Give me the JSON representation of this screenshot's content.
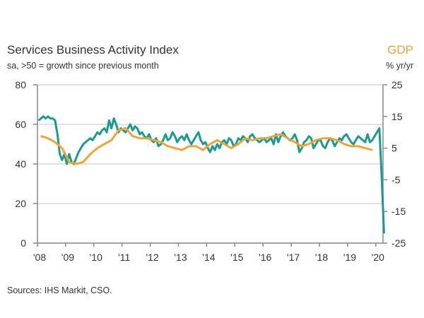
{
  "chart_data": {
    "type": "line",
    "title": "Services Business Activity Index",
    "subtitle": "sa, >50 = growth since previous month",
    "right_axis_title": "GDP",
    "right_axis_unit": "% yr/yr",
    "source": "Sources: IHS Markit, CSO.",
    "x_tick_labels": [
      "'08",
      "'09",
      "'10",
      "'11",
      "'12",
      "'13",
      "'14",
      "'15",
      "'16",
      "'17",
      "'18",
      "'19",
      "'20"
    ],
    "left_axis": {
      "ylim": [
        0,
        80
      ],
      "ticks": [
        0,
        20,
        40,
        60,
        80
      ]
    },
    "right_axis": {
      "ylim": [
        -25,
        25
      ],
      "ticks": [
        -25,
        -15,
        -5,
        5,
        15,
        25
      ]
    },
    "grid": true,
    "colors": {
      "pmi": "#1b9a95",
      "gdp": "#f2a33a"
    },
    "series": [
      {
        "axis": "left",
        "frequency": "monthly",
        "start": "2008-01",
        "values": [
          62,
          63,
          64,
          63,
          64,
          63,
          63,
          62,
          55,
          45,
          42,
          45,
          40,
          45,
          41,
          40,
          43,
          46,
          48,
          50,
          51,
          52,
          53,
          52,
          54,
          56,
          55,
          57,
          58,
          56,
          62,
          58,
          63,
          60,
          56,
          58,
          57,
          56,
          58,
          60,
          57,
          59,
          58,
          55,
          56,
          54,
          53,
          55,
          52,
          51,
          53,
          49,
          50,
          52,
          55,
          52,
          53,
          56,
          54,
          51,
          53,
          54,
          52,
          55,
          52,
          50,
          52,
          54,
          56,
          52,
          50,
          51,
          48,
          46,
          49,
          47,
          50,
          48,
          51,
          52,
          50,
          53,
          52,
          49,
          50,
          53,
          52,
          54,
          53,
          51,
          54,
          55,
          53,
          52,
          51,
          52,
          53,
          51,
          52,
          53,
          50,
          55,
          51,
          54,
          56,
          54,
          53,
          52,
          53,
          55,
          52,
          46,
          48,
          51,
          52,
          54,
          53,
          48,
          50,
          52,
          52,
          49,
          48,
          51,
          53,
          52,
          49,
          51,
          53,
          52,
          54,
          55,
          53,
          51,
          50,
          52,
          54,
          53,
          52,
          51,
          55,
          51,
          52,
          54,
          56,
          58,
          34,
          5
        ]
      },
      {
        "name": "GDP",
        "axis": "right",
        "frequency": "quarterly",
        "start": "2008-Q1",
        "values": [
          8.8,
          8.1,
          6.9,
          5.0,
          0.6,
          0.0,
          0.6,
          3.1,
          5.0,
          6.3,
          7.5,
          10.6,
          11.3,
          8.8,
          8.1,
          8.1,
          7.5,
          6.9,
          5.6,
          5.0,
          4.4,
          5.6,
          5.6,
          4.4,
          6.3,
          7.5,
          6.3,
          5.0,
          6.3,
          8.1,
          7.5,
          8.1,
          8.1,
          8.8,
          9.4,
          8.1,
          6.9,
          5.6,
          6.3,
          7.5,
          8.1,
          8.1,
          7.5,
          6.3,
          5.6,
          5.6,
          5.0,
          4.4
        ]
      }
    ]
  }
}
